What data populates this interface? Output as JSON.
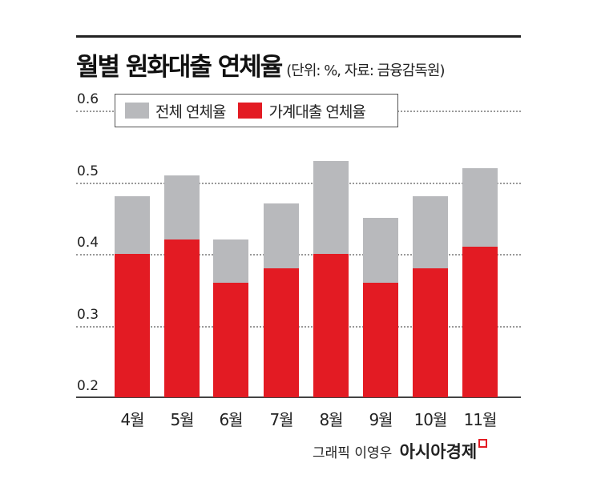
{
  "header": {
    "title": "월별 원화대출 연체율",
    "subtitle": "(단위: %, 자료: 금융감독원)"
  },
  "legend": {
    "total": "전체 연체율",
    "household": "가계대출 연체율"
  },
  "credit": {
    "graphic": "그래픽 이영우",
    "publisher": "아시아경제"
  },
  "colors": {
    "total": "#b8b9bc",
    "household": "#e31b23"
  },
  "yticks": [
    "0.6",
    "0.5",
    "0.4",
    "0.3",
    "0.2"
  ],
  "xlabels": [
    "4월",
    "5월",
    "6월",
    "7월",
    "8월",
    "9월",
    "10월",
    "11월"
  ],
  "chart_data": {
    "type": "bar",
    "title": "월별 원화대출 연체율",
    "subtitle": "(단위: %, 자료: 금융감독원)",
    "categories": [
      "4월",
      "5월",
      "6월",
      "7월",
      "8월",
      "9월",
      "10월",
      "11월"
    ],
    "series": [
      {
        "name": "전체 연체율",
        "color": "#b8b9bc",
        "values": [
          0.48,
          0.51,
          0.42,
          0.47,
          0.53,
          0.45,
          0.48,
          0.52
        ]
      },
      {
        "name": "가계대출 연체율",
        "color": "#e31b23",
        "values": [
          0.4,
          0.42,
          0.36,
          0.38,
          0.4,
          0.36,
          0.38,
          0.41
        ]
      }
    ],
    "xlabel": "",
    "ylabel": "",
    "ylim": [
      0.2,
      0.6
    ],
    "yticks": [
      0.2,
      0.3,
      0.4,
      0.5,
      0.6
    ],
    "grid": true,
    "legend_position": "top",
    "layout": "overlapping bars (household drawn in front of total)"
  }
}
